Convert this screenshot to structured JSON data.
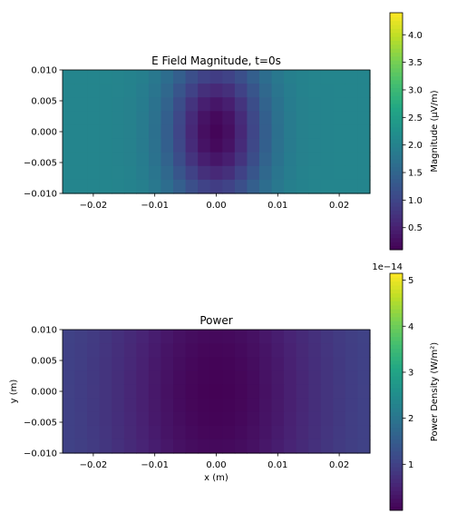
{
  "chart_data": [
    {
      "type": "heatmap",
      "title": "E Field Magnitude, t=0s",
      "xlabel": "",
      "ylabel": "",
      "xlim": [
        -0.025,
        0.025
      ],
      "ylim": [
        -0.01,
        0.01
      ],
      "x_ticks": [
        "−0.02",
        "−0.01",
        "0.00",
        "0.01",
        "0.02"
      ],
      "x_tick_values": [
        -0.02,
        -0.01,
        0.0,
        0.01,
        0.02
      ],
      "y_ticks": [
        "0.010",
        "0.005",
        "0.000",
        "−0.005",
        "−0.010"
      ],
      "y_tick_values": [
        0.01,
        0.005,
        0.0,
        -0.005,
        -0.01
      ],
      "grid": {
        "columns": 25,
        "rows": 9
      },
      "colormap": "viridis",
      "colorbar": {
        "label": "Magnitude (µV/m)",
        "range": [
          0.1,
          4.4
        ],
        "ticks": [
          "0.5",
          "1.0",
          "1.5",
          "2.0",
          "2.5",
          "3.0",
          "3.5",
          "4.0"
        ],
        "tick_values": [
          0.5,
          1.0,
          1.5,
          2.0,
          2.5,
          3.0,
          3.5,
          4.0
        ],
        "offset_text": ""
      },
      "field_model": {
        "edge_value": 2.05,
        "center_min": 0.15,
        "sigma_x": 0.0055,
        "sigma_y": 0.009
      }
    },
    {
      "type": "heatmap",
      "title": "Power",
      "xlabel": "x (m)",
      "ylabel": "y (m)",
      "xlim": [
        -0.025,
        0.025
      ],
      "ylim": [
        -0.01,
        0.01
      ],
      "x_ticks": [
        "−0.02",
        "−0.01",
        "0.00",
        "0.01",
        "0.02"
      ],
      "x_tick_values": [
        -0.02,
        -0.01,
        0.0,
        0.01,
        0.02
      ],
      "y_ticks": [
        "0.010",
        "0.005",
        "0.000",
        "−0.005",
        "−0.010"
      ],
      "y_tick_values": [
        0.01,
        0.005,
        0.0,
        -0.005,
        -0.01
      ],
      "grid": {
        "columns": 25,
        "rows": 9
      },
      "colormap": "viridis",
      "colorbar": {
        "label": "Power Density (W/m²)",
        "range": [
          0.0,
          5.15
        ],
        "ticks": [
          "1",
          "2",
          "3",
          "4",
          "5"
        ],
        "tick_values": [
          1,
          2,
          3,
          4,
          5
        ],
        "offset_text": "1e−14"
      },
      "field_model": {
        "edge_value": 1.15,
        "center_min": 0.02,
        "sigma_x": 0.012,
        "sigma_y": 0.02
      }
    }
  ]
}
